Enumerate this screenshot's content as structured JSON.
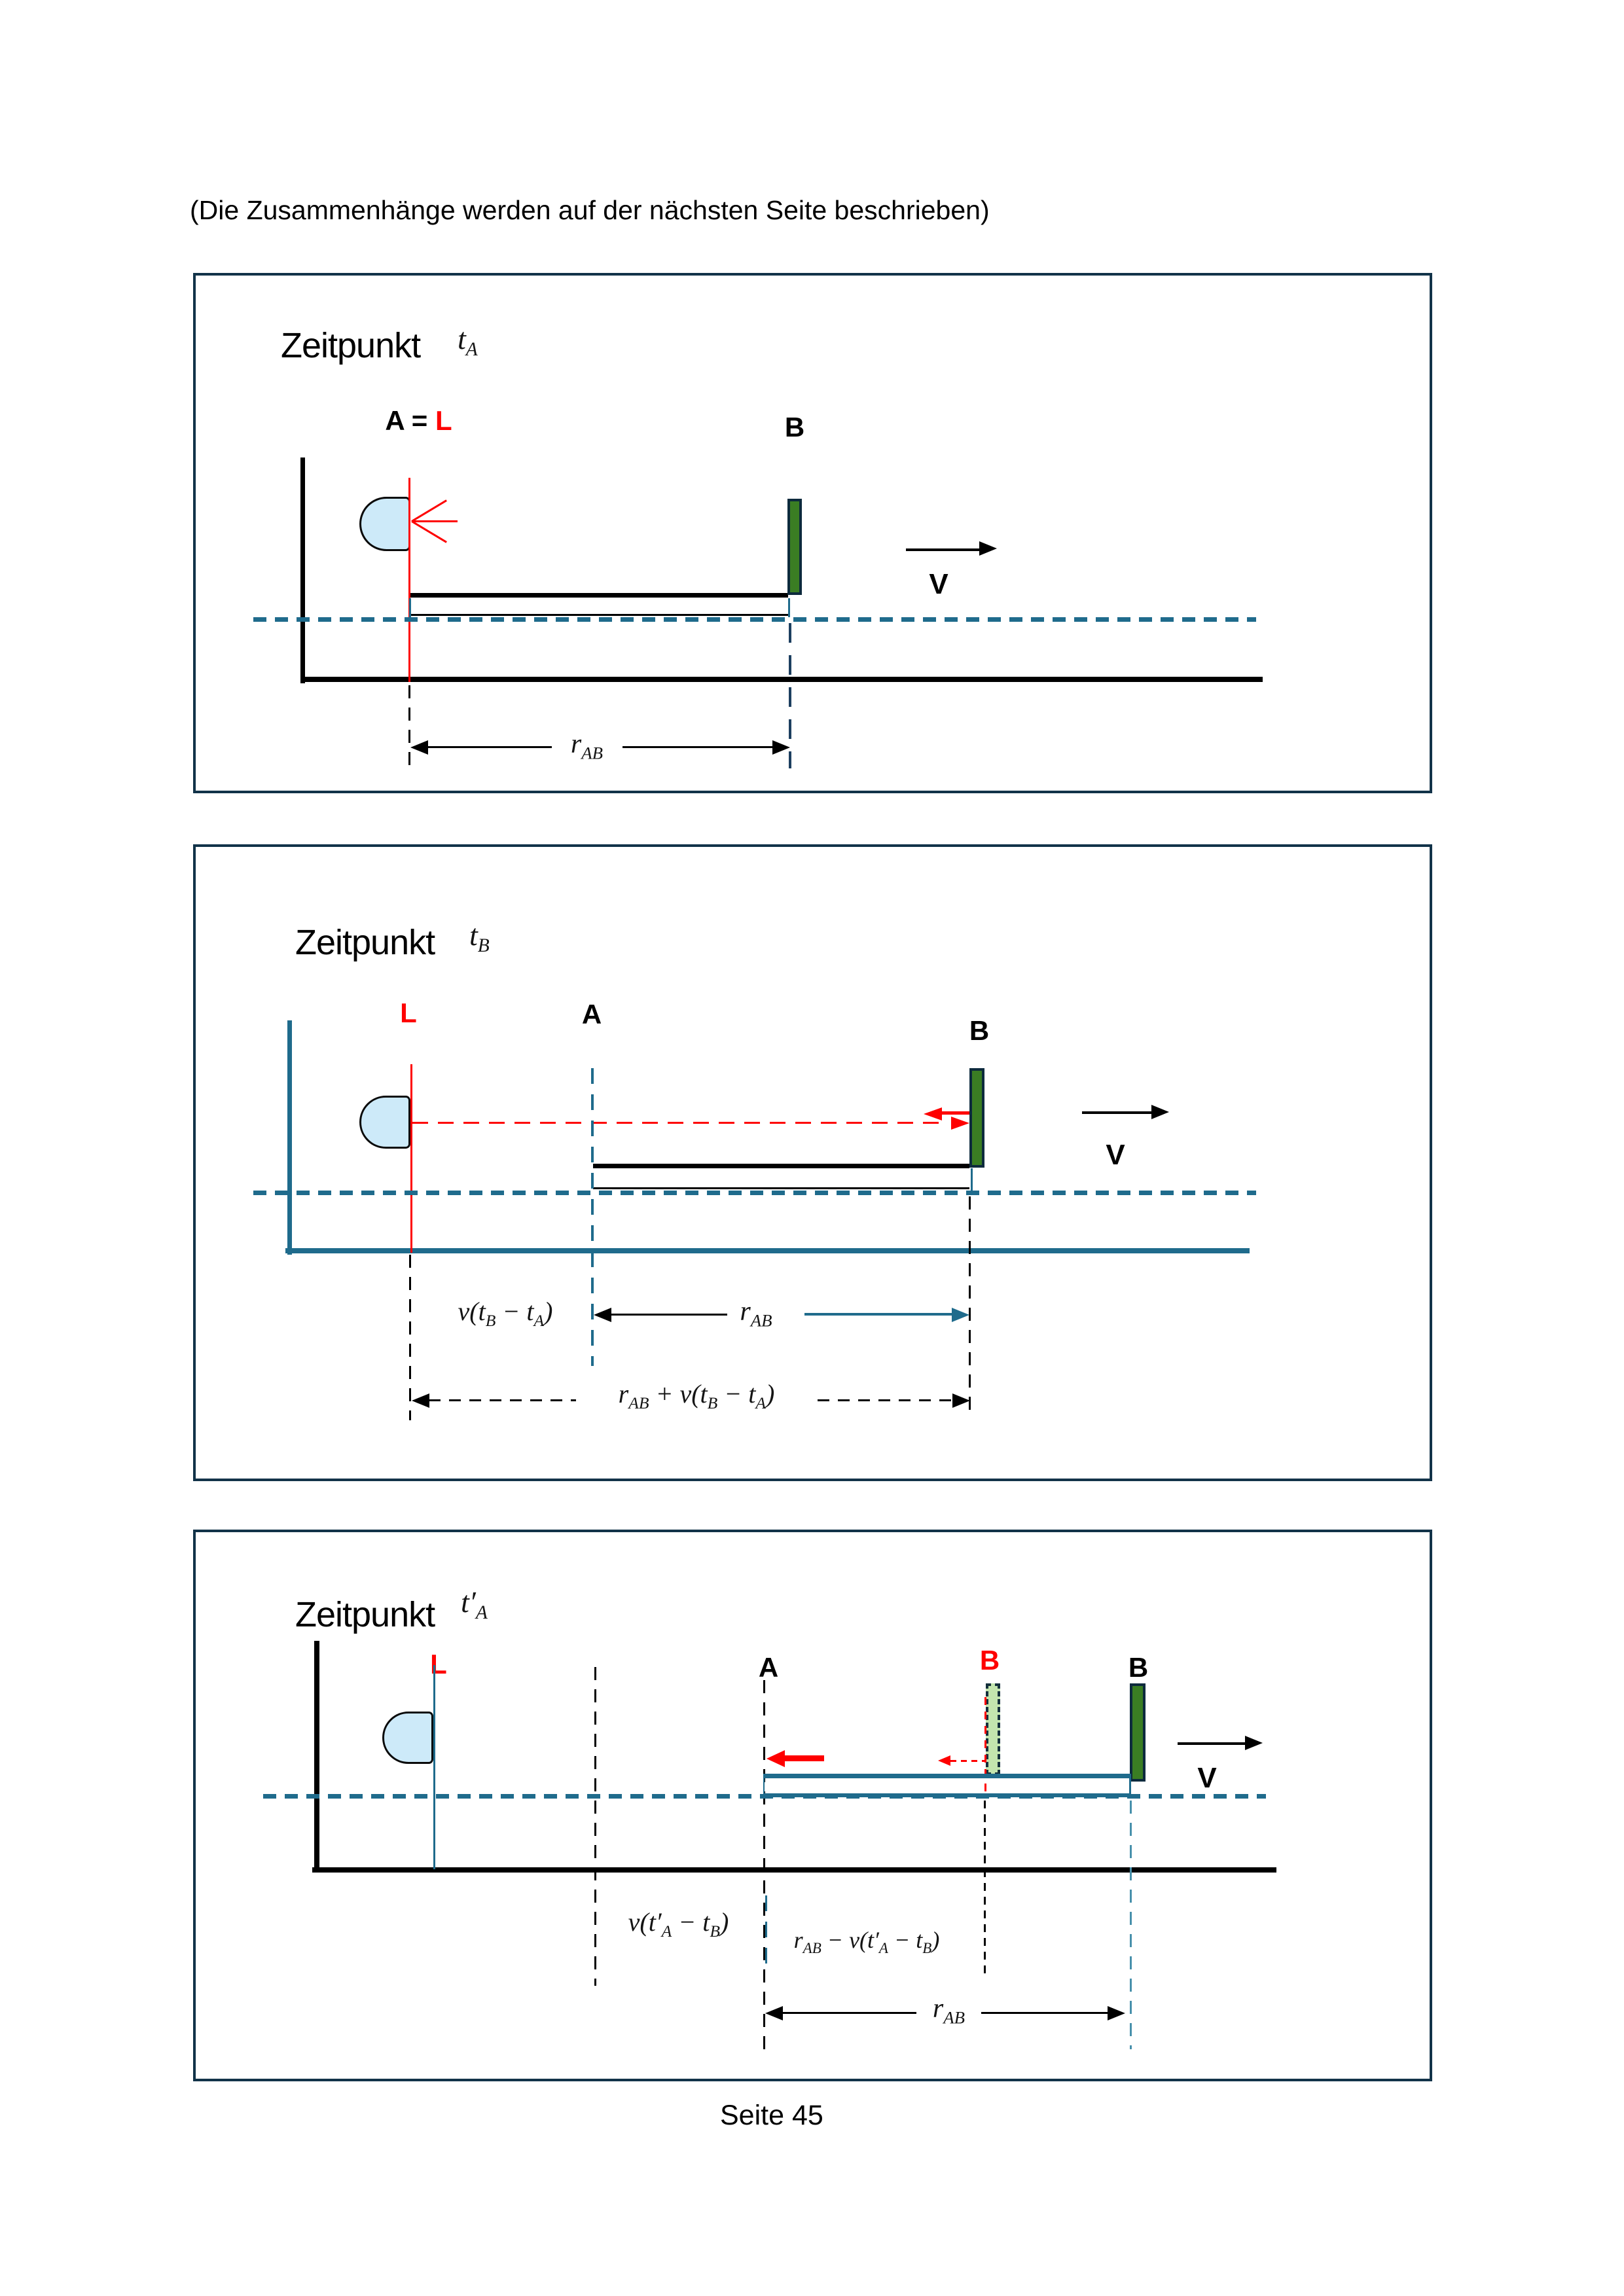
{
  "page": {
    "header": "(Die Zusammenhänge werden auf der nächsten Seite beschrieben)",
    "footer": "Seite  45"
  },
  "colors": {
    "teal": "#1f6b8c",
    "navy": "#0d2a3d",
    "red": "#fe0000",
    "green": "#3a7d23",
    "ghost": "#c3e5ae",
    "lamp": "#cdeaf9"
  },
  "panel1": {
    "title": "Zeitpunkt",
    "time": "t_{A}",
    "label_a_eq": "A = ",
    "label_l": "L",
    "label_b": "B",
    "velocity": "V",
    "dim_rab": "r_{AB}"
  },
  "panel2": {
    "title": "Zeitpunkt",
    "time": "t_{B}",
    "label_l": "L",
    "label_a": "A",
    "label_b": "B",
    "velocity": "V",
    "dim_v": "v(t_{B} − t_{A})",
    "dim_rab": "r_{AB}",
    "dim_sum": "r_{AB} + v(t_{B} − t_{A})"
  },
  "panel3": {
    "title": "Zeitpunkt",
    "time": "t′_{A}",
    "label_l": "L",
    "label_a": "A",
    "label_b_ghost": "B",
    "label_b": "B",
    "velocity": "V",
    "dim_v": "v(t′_{A} − t_{B})",
    "dim_diff": "r_{AB} − v(t′_{A} − t_{B})",
    "dim_rab": "r_{AB}"
  }
}
